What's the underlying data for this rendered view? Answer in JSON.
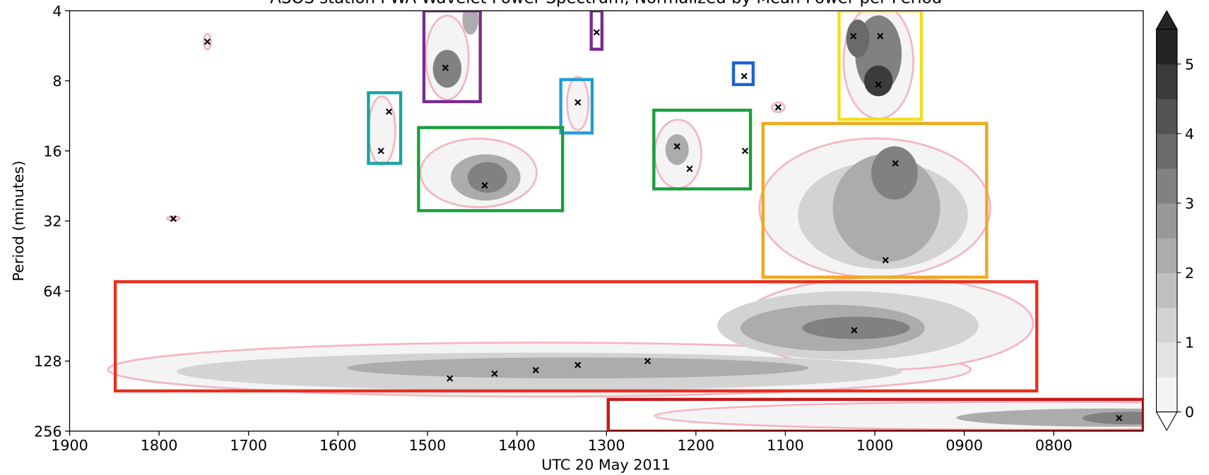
{
  "chart_data": {
    "type": "contour",
    "title": "ASOS station PWA Wavelet Power Spectrum, Normalized by Mean Power per Period",
    "x_label": "UTC 20 May 2011",
    "y_label": "Period (minutes)",
    "xlim": [
      19,
      7
    ],
    "xticks": [
      {
        "value": 19,
        "label": "1900"
      },
      {
        "value": 18,
        "label": "1800"
      },
      {
        "value": 17,
        "label": "1700"
      },
      {
        "value": 16,
        "label": "1600"
      },
      {
        "value": 15,
        "label": "1500"
      },
      {
        "value": 14,
        "label": "1400"
      },
      {
        "value": 13,
        "label": "1300"
      },
      {
        "value": 12,
        "label": "1200"
      },
      {
        "value": 11,
        "label": "1100"
      },
      {
        "value": 10,
        "label": "1000"
      },
      {
        "value": 9,
        "label": "0900"
      },
      {
        "value": 8,
        "label": "0800"
      }
    ],
    "ylim": [
      4,
      256
    ],
    "yticks": [
      4,
      8,
      16,
      32,
      64,
      128,
      256
    ],
    "y_scale": "log2",
    "y_inverted": true,
    "outline_color": "#f4b6c2",
    "marker_color": "#000000",
    "colorbar": {
      "lim": [
        0,
        5.5
      ],
      "ticks": [
        0,
        1,
        2,
        3,
        4,
        5
      ],
      "colors": [
        "#f4f4f4",
        "#e4e4e4",
        "#d3d3d3",
        "#c0c0c0",
        "#acacac",
        "#979797",
        "#818181",
        "#6a6a6a",
        "#535353",
        "#3b3b3b",
        "#242424"
      ],
      "extend": "both"
    },
    "contours": [
      {
        "x": 13.75,
        "y": 139.2,
        "rx": 4.82,
        "ry": 0.385,
        "level": 0
      },
      {
        "x": 9.87,
        "y": 88.2,
        "rx": 1.64,
        "ry": 0.66,
        "level": 0
      },
      {
        "x": 8.15,
        "y": 220,
        "rx": 4.31,
        "ry": 0.2,
        "level": 0
      },
      {
        "x": 10.0,
        "y": 28.1,
        "rx": 1.29,
        "ry": 0.99,
        "level": 0
      },
      {
        "x": 9.96,
        "y": 6.6,
        "rx": 0.39,
        "ry": 0.82,
        "level": 0
      },
      {
        "x": 14.78,
        "y": 6.36,
        "rx": 0.24,
        "ry": 0.6,
        "level": 0
      },
      {
        "x": 14.43,
        "y": 19.9,
        "rx": 0.65,
        "ry": 0.49,
        "level": 0
      },
      {
        "x": 12.2,
        "y": 16.5,
        "rx": 0.26,
        "ry": 0.49,
        "level": 0
      },
      {
        "x": 15.51,
        "y": 13.1,
        "rx": 0.15,
        "ry": 0.49,
        "level": 0
      },
      {
        "x": 13.32,
        "y": 10.0,
        "rx": 0.12,
        "ry": 0.38,
        "level": 0
      },
      {
        "x": 11.08,
        "y": 10.4,
        "rx": 0.07,
        "ry": 0.07,
        "level": 0
      },
      {
        "x": 17.46,
        "y": 5.43,
        "rx": 0.04,
        "ry": 0.11,
        "level": 0
      },
      {
        "x": 17.84,
        "y": 31.2,
        "rx": 0.07,
        "ry": 0.03,
        "level": 0
      },
      {
        "x": 13.75,
        "y": 142,
        "rx": 4.05,
        "ry": 0.27,
        "level": 1
      },
      {
        "x": 10.3,
        "y": 90.1,
        "rx": 1.46,
        "ry": 0.49,
        "level": 1
      },
      {
        "x": 13.32,
        "y": 137,
        "rx": 2.58,
        "ry": 0.15,
        "level": 2
      },
      {
        "x": 10.47,
        "y": 92.2,
        "rx": 1.03,
        "ry": 0.33,
        "level": 2
      },
      {
        "x": 10.21,
        "y": 92.2,
        "rx": 0.6,
        "ry": 0.16,
        "level": 3
      },
      {
        "x": 7.37,
        "y": 224,
        "rx": 1.72,
        "ry": 0.13,
        "level": 2
      },
      {
        "x": 7.16,
        "y": 225,
        "rx": 0.52,
        "ry": 0.09,
        "level": 3
      },
      {
        "x": 9.91,
        "y": 30.2,
        "rx": 0.95,
        "ry": 0.77,
        "level": 1
      },
      {
        "x": 9.87,
        "y": 28.1,
        "rx": 0.6,
        "ry": 0.77,
        "level": 2
      },
      {
        "x": 9.78,
        "y": 19.9,
        "rx": 0.26,
        "ry": 0.38,
        "level": 3
      },
      {
        "x": 9.96,
        "y": 6.13,
        "rx": 0.26,
        "ry": 0.55,
        "level": 3
      },
      {
        "x": 9.96,
        "y": 8,
        "rx": 0.16,
        "ry": 0.22,
        "level": 4.5
      },
      {
        "x": 10.19,
        "y": 5.26,
        "rx": 0.13,
        "ry": 0.27,
        "level": 3.5
      },
      {
        "x": 14.78,
        "y": 7.1,
        "rx": 0.16,
        "ry": 0.27,
        "level": 3
      },
      {
        "x": 14.52,
        "y": 4.35,
        "rx": 0.09,
        "ry": 0.22,
        "level": 2
      },
      {
        "x": 14.35,
        "y": 20.8,
        "rx": 0.39,
        "ry": 0.33,
        "level": 2
      },
      {
        "x": 14.33,
        "y": 20.8,
        "rx": 0.22,
        "ry": 0.22,
        "level": 3
      },
      {
        "x": 12.21,
        "y": 15.8,
        "rx": 0.13,
        "ry": 0.22,
        "level": 2
      }
    ],
    "markers": {
      "x": [
        17.46,
        17.84,
        14.8,
        13.11,
        15.43,
        15.52,
        13.32,
        14.36,
        11.46,
        11.08,
        12.21,
        12.07,
        11.45,
        10.24,
        9.94,
        9.96,
        9.77,
        9.88,
        10.23,
        12.54,
        13.32,
        13.79,
        14.25,
        14.75,
        7.27
      ],
      "y": [
        5.43,
        31.3,
        7.03,
        4.95,
        10.85,
        16,
        9.9,
        22.5,
        7.64,
        10.4,
        15.3,
        19.1,
        16,
        5.14,
        5.14,
        8.3,
        18.1,
        47.2,
        94.4,
        128,
        133,
        140,
        145,
        152,
        225
      ]
    },
    "boxes": [
      {
        "color": "#7b2a8f",
        "x": [
          15.04,
          14.41
        ],
        "y": [
          4,
          9.83
        ]
      },
      {
        "color": "#7b2a8f",
        "x": [
          13.17,
          13.05
        ],
        "y": [
          4,
          5.85
        ]
      },
      {
        "color": "#1aa3a3",
        "x": [
          15.66,
          15.3
        ],
        "y": [
          9.0,
          18.1
        ]
      },
      {
        "color": "#1e9ed8",
        "x": [
          13.51,
          13.16
        ],
        "y": [
          7.9,
          13.4
        ]
      },
      {
        "color": "#1a9e3a",
        "x": [
          15.1,
          13.49
        ],
        "y": [
          12.7,
          28.9
        ]
      },
      {
        "color": "#1a63d6",
        "x": [
          11.58,
          11.36
        ],
        "y": [
          6.7,
          8.3
        ]
      },
      {
        "color": "#1a9e3a",
        "x": [
          12.47,
          11.39
        ],
        "y": [
          10.7,
          23.3
        ]
      },
      {
        "color": "#f5dc1c",
        "x": [
          10.4,
          9.48
        ],
        "y": [
          4,
          11.7
        ]
      },
      {
        "color": "#f0a81c",
        "x": [
          11.25,
          8.75
        ],
        "y": [
          12.2,
          55.8
        ]
      },
      {
        "color": "#e83020",
        "x": [
          18.49,
          8.19
        ],
        "y": [
          58.4,
          172
        ]
      },
      {
        "color": "#c81818",
        "x": [
          12.98,
          7
        ],
        "y": [
          187,
          256
        ]
      }
    ]
  }
}
